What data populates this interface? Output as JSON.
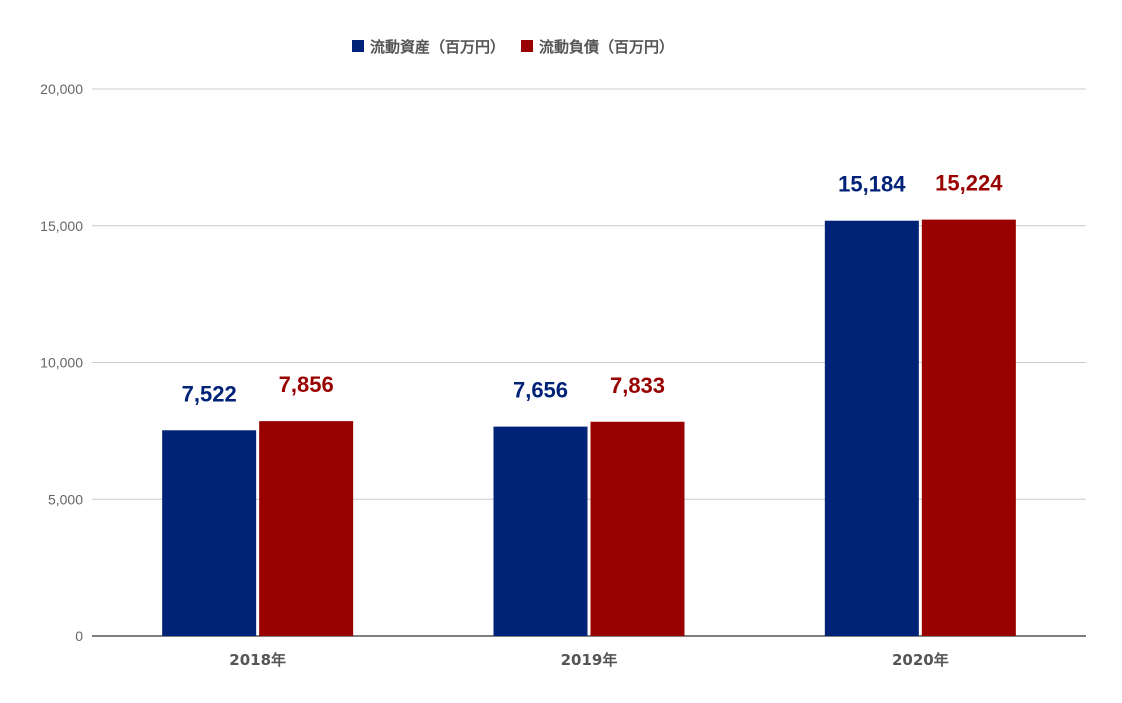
{
  "chart_data": {
    "type": "bar",
    "categories": [
      "2018年",
      "2019年",
      "2020年"
    ],
    "series": [
      {
        "name": "流動資産（百万円）",
        "values": [
          7522,
          7656,
          15184
        ],
        "labels": [
          "7,522",
          "7,656",
          "15,184"
        ],
        "color": "#002277"
      },
      {
        "name": "流動負債（百万円）",
        "values": [
          7856,
          7833,
          15224
        ],
        "labels": [
          "7,856",
          "7,833",
          "15,224"
        ],
        "color": "#990000"
      }
    ],
    "yticks": [
      "0",
      "5,000",
      "10,000",
      "15,000",
      "20,000"
    ],
    "ylim": [
      0,
      20000
    ],
    "grid": true,
    "legend_position": "top-center",
    "title": "",
    "xlabel": "",
    "ylabel": ""
  }
}
